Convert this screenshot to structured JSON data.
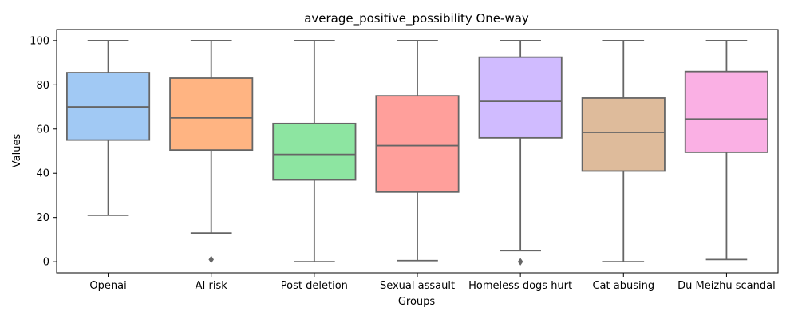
{
  "chart_data": {
    "type": "box",
    "title": "average_positive_possibility One-way",
    "xlabel": "Groups",
    "ylabel": "Values",
    "ylim": [
      -5,
      105
    ],
    "yticks": [
      0,
      20,
      40,
      60,
      80,
      100
    ],
    "grid": false,
    "legend": "none",
    "colors": {
      "edge": "#666666",
      "series": [
        "#a1c9f4",
        "#ffb482",
        "#8de5a1",
        "#ff9f9b",
        "#d0bbff",
        "#debb9b",
        "#fab0e4"
      ]
    },
    "groups": [
      {
        "name": "Openai",
        "whisker_low": 21,
        "q1": 55,
        "median": 70,
        "q3": 85.5,
        "whisker_high": 100,
        "outliers": []
      },
      {
        "name": "AI risk",
        "whisker_low": 13,
        "q1": 50.5,
        "median": 65,
        "q3": 83,
        "whisker_high": 100,
        "outliers": [
          1
        ]
      },
      {
        "name": "Post deletion",
        "whisker_low": 0,
        "q1": 37,
        "median": 48.5,
        "q3": 62.5,
        "whisker_high": 100,
        "outliers": []
      },
      {
        "name": "Sexual assault",
        "whisker_low": 0.5,
        "q1": 31.5,
        "median": 52.5,
        "q3": 75,
        "whisker_high": 100,
        "outliers": []
      },
      {
        "name": "Homeless dogs hurt",
        "whisker_low": 5,
        "q1": 56,
        "median": 72.5,
        "q3": 92.5,
        "whisker_high": 100,
        "outliers": [
          0
        ]
      },
      {
        "name": "Cat abusing",
        "whisker_low": 0,
        "q1": 41,
        "median": 58.5,
        "q3": 74,
        "whisker_high": 100,
        "outliers": []
      },
      {
        "name": "Du Meizhu scandal",
        "whisker_low": 1,
        "q1": 49.5,
        "median": 64.5,
        "q3": 86,
        "whisker_high": 100,
        "outliers": []
      }
    ]
  }
}
